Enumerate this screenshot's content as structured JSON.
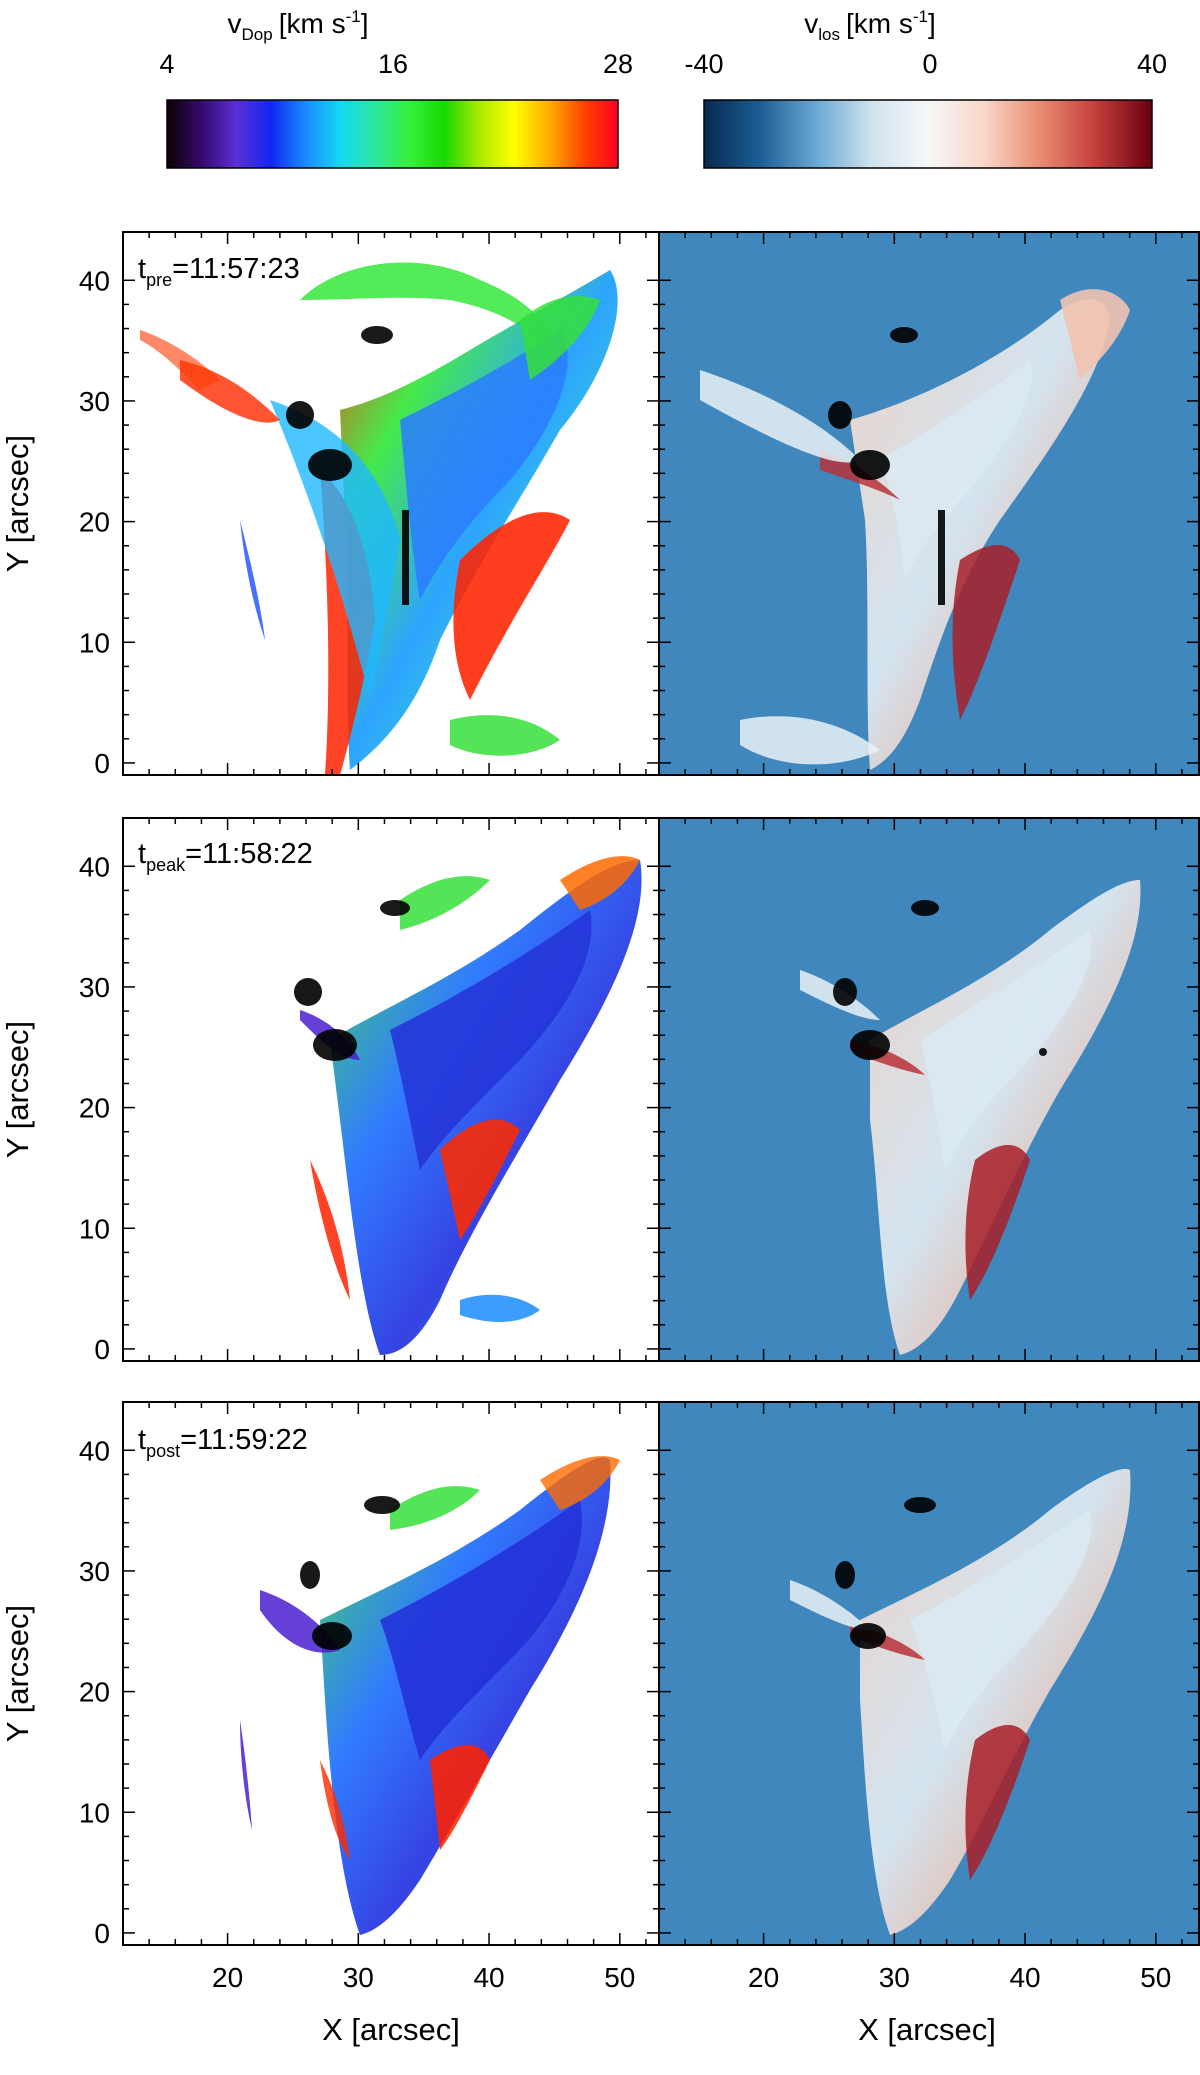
{
  "colorbars": [
    {
      "id": "vdop",
      "label_main": "v",
      "label_sub": "Dop",
      "label_unit": "[km s",
      "label_exp": "-1",
      "label_close": "]",
      "ticks": [
        "4",
        "16",
        "28"
      ],
      "stops": [
        "#0c0004",
        "#37096e",
        "#5b2fd6",
        "#1028f0",
        "#1a8cff",
        "#14d8f0",
        "#2ee7a0",
        "#35f03a",
        "#18d800",
        "#a8ea00",
        "#ffff00",
        "#ffae00",
        "#ff4500",
        "#ff0022"
      ]
    },
    {
      "id": "vlos",
      "label_main": "v",
      "label_sub": "los",
      "label_unit": "[km s",
      "label_exp": "-1",
      "label_close": "]",
      "ticks": [
        "-40",
        "0",
        "40"
      ],
      "stops": [
        "#06294f",
        "#1b5e93",
        "#6aa8d3",
        "#cfe3ef",
        "#f7f7f7",
        "#f9d7c8",
        "#e98c72",
        "#c43e3a",
        "#6a0010"
      ]
    }
  ],
  "panels": [
    {
      "time_var": "t",
      "time_sub": "pre",
      "time_value": "=11:57:23"
    },
    {
      "time_var": "t",
      "time_sub": "peak",
      "time_value": "=11:58:22"
    },
    {
      "time_var": "t",
      "time_sub": "post",
      "time_value": "=11:59:22"
    }
  ],
  "axes": {
    "ylabel": "Y [arcsec]",
    "xlabel": "X [arcsec]",
    "yticks": [
      "0",
      "10",
      "20",
      "30",
      "40"
    ],
    "xticks": [
      "20",
      "30",
      "40",
      "50"
    ]
  },
  "colors": {
    "vlos_background": "#3f87bd",
    "contour": "#000000"
  }
}
